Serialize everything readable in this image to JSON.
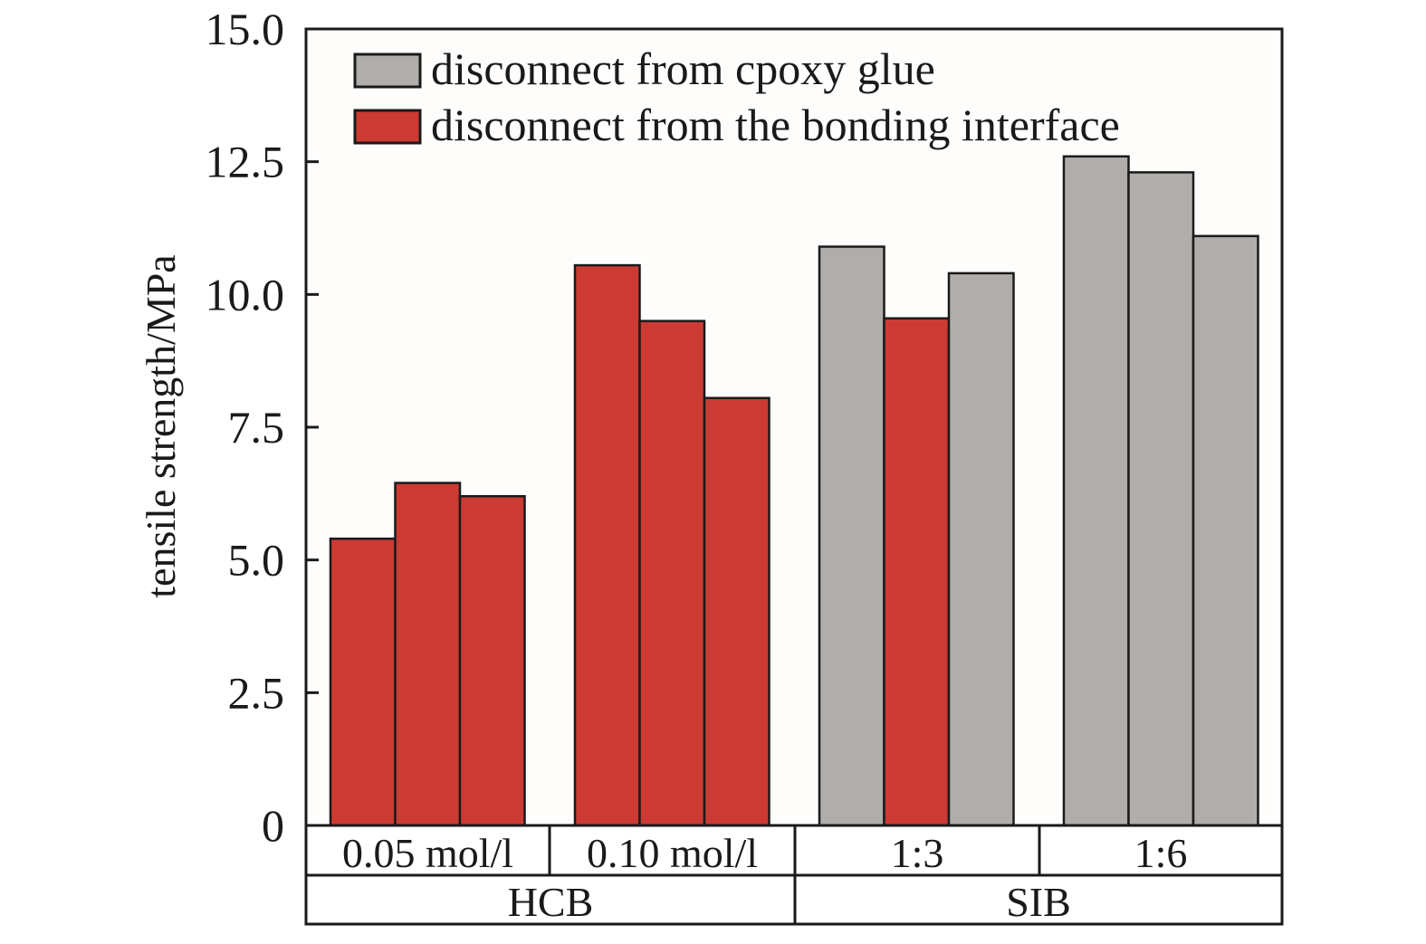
{
  "chart_data": {
    "type": "bar",
    "title": "",
    "ylabel": "tensile strength/MPa",
    "xlabel": "",
    "ylim": [
      0,
      15
    ],
    "yticks": [
      {
        "value": 0,
        "label": "0"
      },
      {
        "value": 2.5,
        "label": "2.5"
      },
      {
        "value": 5,
        "label": "5.0"
      },
      {
        "value": 7.5,
        "label": "7.5"
      },
      {
        "value": 10,
        "label": "10.0"
      },
      {
        "value": 12.5,
        "label": "12.5"
      },
      {
        "value": 15,
        "label": "15.0"
      }
    ],
    "grid": false,
    "legend_position": "top-left",
    "legend": [
      {
        "key": "epoxy",
        "label": "disconnect from cpoxy glue",
        "color": "#b0adab"
      },
      {
        "key": "interface",
        "label": "disconnect from the bonding interface",
        "color": "#cc3a34"
      }
    ],
    "groups": [
      {
        "label": "0.05 mol/l",
        "parent": "HCB",
        "bars": [
          {
            "value": 5.4,
            "failure": "interface"
          },
          {
            "value": 6.45,
            "failure": "interface"
          },
          {
            "value": 6.2,
            "failure": "interface"
          }
        ]
      },
      {
        "label": "0.10 mol/l",
        "parent": "HCB",
        "bars": [
          {
            "value": 10.55,
            "failure": "interface"
          },
          {
            "value": 9.5,
            "failure": "interface"
          },
          {
            "value": 8.05,
            "failure": "interface"
          }
        ]
      },
      {
        "label": "1:3",
        "parent": "SIB",
        "bars": [
          {
            "value": 10.9,
            "failure": "epoxy"
          },
          {
            "value": 9.55,
            "failure": "interface"
          },
          {
            "value": 10.4,
            "failure": "epoxy"
          }
        ]
      },
      {
        "label": "1:6",
        "parent": "SIB",
        "bars": [
          {
            "value": 12.6,
            "failure": "epoxy"
          },
          {
            "value": 12.3,
            "failure": "epoxy"
          },
          {
            "value": 11.1,
            "failure": "epoxy"
          }
        ]
      }
    ],
    "parent_groups": [
      "HCB",
      "SIB"
    ]
  }
}
